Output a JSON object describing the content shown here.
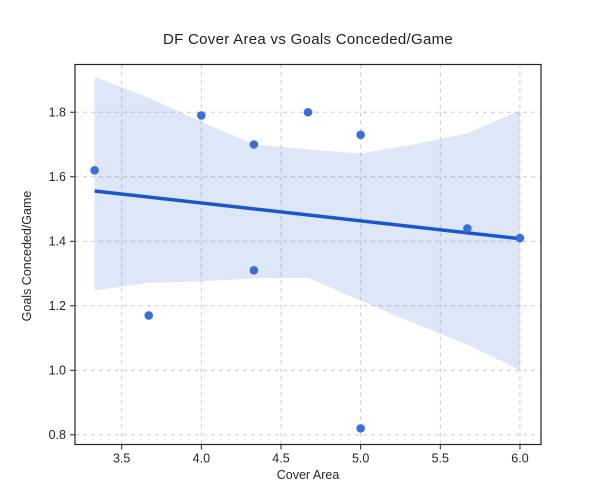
{
  "chart_data": {
    "type": "scatter",
    "title": "DF Cover Area vs Goals Conceded/Game",
    "xlabel": "Cover Area",
    "ylabel": "Goals Conceded/Game",
    "xlim": [
      3.207,
      6.132
    ],
    "ylim": [
      0.77,
      1.948
    ],
    "grid": true,
    "legend": "none",
    "xticks": {
      "values": [
        3.5,
        4.0,
        4.5,
        5.0,
        5.5,
        6.0
      ],
      "labels": [
        "3.5",
        "4.0",
        "4.5",
        "5.0",
        "5.5",
        "6.0"
      ]
    },
    "yticks": {
      "values": [
        0.8,
        1.0,
        1.2,
        1.4,
        1.6,
        1.8
      ],
      "labels": [
        "0.8",
        "1.0",
        "1.2",
        "1.4",
        "1.6",
        "1.8"
      ]
    },
    "points": [
      [
        3.33,
        1.62
      ],
      [
        3.67,
        1.17
      ],
      [
        4.0,
        1.79
      ],
      [
        4.33,
        1.7
      ],
      [
        4.33,
        1.31
      ],
      [
        4.67,
        1.8
      ],
      [
        5.0,
        1.73
      ],
      [
        5.0,
        0.82
      ],
      [
        5.67,
        1.44
      ],
      [
        6.0,
        1.41
      ]
    ],
    "regression_line": {
      "x1": 3.33,
      "y1": 1.556,
      "x2": 6.0,
      "y2": 1.408
    },
    "confidence_band": {
      "x": [
        3.33,
        3.67,
        4.0,
        4.33,
        4.67,
        5.0,
        5.33,
        5.67,
        6.0
      ],
      "upper": [
        1.91,
        1.845,
        1.77,
        1.7,
        1.685,
        1.672,
        1.7,
        1.735,
        1.805
      ],
      "lower": [
        1.247,
        1.271,
        1.276,
        1.285,
        1.287,
        1.216,
        1.147,
        1.08,
        1.0
      ]
    },
    "colors": {
      "point": "#3a6fd8",
      "line": "#1a56cc",
      "band": "#3a6fd8",
      "band_opacity": "0.17",
      "grid": "#c9c9c9",
      "spine": "#262626",
      "tick_text": "#262626"
    }
  }
}
